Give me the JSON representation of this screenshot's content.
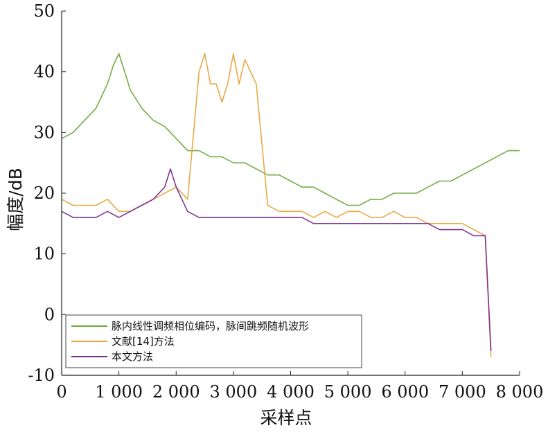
{
  "chart_data": {
    "type": "line",
    "xlabel": "采样点",
    "ylabel": "幅度/dB",
    "xlim": [
      0,
      8000
    ],
    "ylim": [
      -10,
      50
    ],
    "x_ticks": [
      0,
      1000,
      2000,
      3000,
      4000,
      5000,
      6000,
      7000,
      8000
    ],
    "x_tick_labels": [
      "0",
      "1 000",
      "2 000",
      "3 000",
      "4 000",
      "5 000",
      "6 000",
      "7 000",
      "8 000"
    ],
    "y_ticks": [
      -10,
      0,
      10,
      20,
      30,
      40,
      50
    ],
    "y_tick_labels": [
      "-10",
      "0",
      "10",
      "20",
      "30",
      "40",
      "50"
    ],
    "legend_position": "bottom-left",
    "series": [
      {
        "name": "脉内线性调频相位编码，脉间跳频随机波形",
        "color": "#6aaa3a",
        "x": [
          0,
          200,
          400,
          600,
          800,
          900,
          1000,
          1100,
          1200,
          1400,
          1600,
          1800,
          2000,
          2200,
          2400,
          2600,
          2800,
          3000,
          3200,
          3400,
          3600,
          3800,
          4000,
          4200,
          4400,
          4600,
          4800,
          5000,
          5200,
          5400,
          5600,
          5800,
          6000,
          6200,
          6400,
          6600,
          6800,
          7000,
          7200,
          7400,
          7600,
          7800,
          8000
        ],
        "y": [
          29,
          30,
          32,
          34,
          38,
          41,
          43,
          40,
          37,
          34,
          32,
          31,
          29,
          27,
          27,
          26,
          26,
          25,
          25,
          24,
          23,
          23,
          22,
          21,
          21,
          20,
          19,
          18,
          18,
          19,
          19,
          20,
          20,
          20,
          21,
          22,
          22,
          23,
          24,
          25,
          26,
          27,
          27
        ]
      },
      {
        "name": "文献[14]方法",
        "color": "#e8a33a",
        "x": [
          0,
          200,
          400,
          600,
          800,
          1000,
          1200,
          1400,
          1600,
          1800,
          2000,
          2200,
          2400,
          2500,
          2600,
          2700,
          2800,
          2900,
          3000,
          3100,
          3200,
          3300,
          3400,
          3600,
          3800,
          4000,
          4200,
          4400,
          4600,
          4800,
          5000,
          5200,
          5400,
          5600,
          5800,
          6000,
          6200,
          6400,
          6600,
          6800,
          7000,
          7200,
          7400,
          7500
        ],
        "y": [
          19,
          18,
          18,
          18,
          19,
          17,
          17,
          18,
          19,
          20,
          21,
          19,
          40,
          43,
          38,
          38,
          35,
          38,
          43,
          38,
          42,
          40,
          38,
          18,
          17,
          17,
          17,
          16,
          17,
          16,
          17,
          17,
          16,
          16,
          17,
          16,
          16,
          15,
          15,
          15,
          15,
          14,
          13,
          -7
        ]
      },
      {
        "name": "本文方法",
        "color": "#7a2a90",
        "x": [
          0,
          200,
          400,
          600,
          800,
          1000,
          1200,
          1400,
          1600,
          1800,
          1900,
          2000,
          2200,
          2400,
          2600,
          2800,
          3000,
          3200,
          3400,
          3600,
          3800,
          4000,
          4200,
          4400,
          4600,
          4800,
          5000,
          5200,
          5400,
          5600,
          5800,
          6000,
          6200,
          6400,
          6600,
          6800,
          7000,
          7200,
          7400,
          7500
        ],
        "y": [
          17,
          16,
          16,
          16,
          17,
          16,
          17,
          18,
          19,
          21,
          24,
          21,
          17,
          16,
          16,
          16,
          16,
          16,
          16,
          16,
          16,
          16,
          16,
          15,
          15,
          15,
          15,
          15,
          15,
          15,
          15,
          15,
          15,
          15,
          14,
          14,
          14,
          13,
          13,
          -6
        ]
      }
    ]
  }
}
